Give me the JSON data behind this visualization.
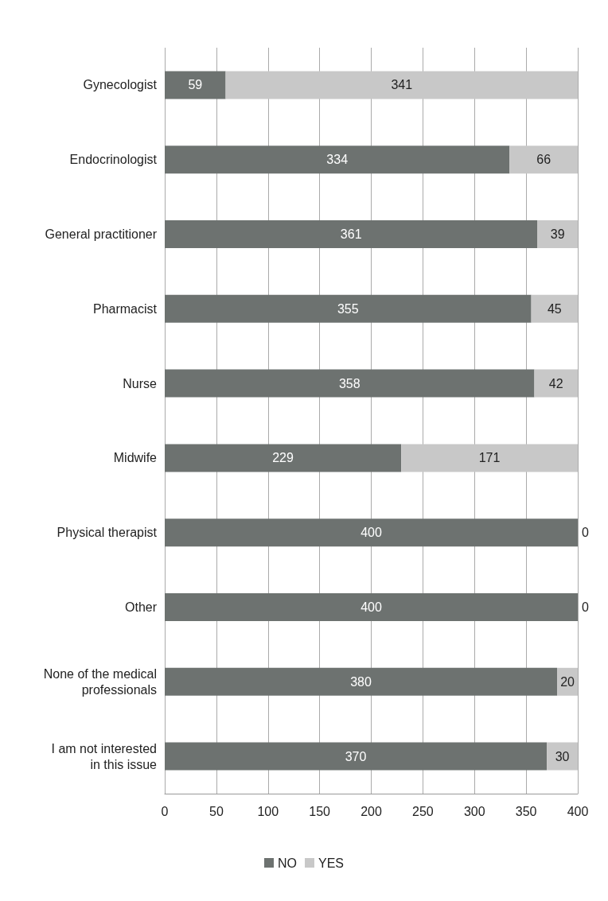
{
  "chart_data": {
    "type": "bar",
    "orientation": "horizontal",
    "stacked": true,
    "categories": [
      "Gynecologist",
      "Endocrinologist",
      "General practitioner",
      "Pharmacist",
      "Nurse",
      "Midwife",
      "Physical therapist",
      "Other",
      "None of the medical\nprofessionals",
      "I am not interested\nin this issue"
    ],
    "series": [
      {
        "name": "NO",
        "color": "#6d7270",
        "values": [
          59,
          334,
          361,
          355,
          358,
          229,
          400,
          400,
          380,
          370
        ]
      },
      {
        "name": "YES",
        "color": "#c8c8c8",
        "values": [
          341,
          66,
          39,
          45,
          42,
          171,
          0,
          0,
          20,
          30
        ]
      }
    ],
    "xlim": [
      0,
      400
    ],
    "xticks": [
      0,
      50,
      100,
      150,
      200,
      250,
      300,
      350,
      400
    ],
    "grid": "x",
    "legend": "bottom",
    "data_labels": true
  }
}
